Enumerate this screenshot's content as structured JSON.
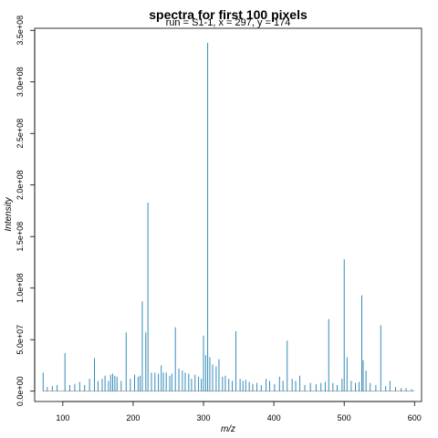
{
  "chart_data": {
    "type": "line",
    "title": "spectra for first 100 pixels",
    "subtitle": "run = S1-1, x = 297, y = 174",
    "xlabel": "m/z",
    "ylabel": "Intensity",
    "xlim": [
      60,
      610
    ],
    "ylim": [
      -10000000.0,
      352000000.0
    ],
    "x_ticks": [
      100,
      200,
      300,
      400,
      500,
      600
    ],
    "x_tick_labels": [
      "100",
      "200",
      "300",
      "400",
      "500",
      "600"
    ],
    "y_ticks": [
      0,
      50000000,
      100000000,
      150000000,
      200000000,
      250000000,
      300000000,
      350000000
    ],
    "y_tick_labels": [
      "0.0e+00",
      "5.0e+07",
      "1.0e+08",
      "1.5e+08",
      "2.0e+08",
      "2.5e+08",
      "3.0e+08",
      "3.5e+08"
    ],
    "grid": false,
    "line_color": "#1f7fb0",
    "baseline_color": "#888888",
    "series": [
      {
        "x": [
          72,
          78,
          85,
          92,
          103,
          110,
          117,
          124,
          131,
          138,
          145,
          150,
          156,
          160,
          165,
          168,
          171,
          174,
          177,
          183,
          190,
          196,
          202,
          207,
          210,
          213,
          218,
          221,
          226,
          231,
          236,
          240,
          243,
          247,
          252,
          255,
          260,
          265,
          270,
          274,
          279,
          283,
          288,
          293,
          297,
          300,
          303,
          306,
          309,
          313,
          318,
          322,
          327,
          331,
          336,
          341,
          346,
          352,
          356,
          360,
          365,
          370,
          376,
          382,
          389,
          394,
          401,
          408,
          413,
          419,
          426,
          431,
          437,
          444,
          452,
          460,
          467,
          473,
          478,
          484,
          490,
          497,
          500,
          504,
          510,
          516,
          521,
          525,
          527,
          531,
          537,
          545,
          552,
          559,
          565,
          573,
          581,
          588,
          596
        ],
        "y": [
          18000000,
          4000000,
          5000000,
          6000000,
          37000000,
          6000000,
          7000000,
          9000000,
          6000000,
          12000000,
          32000000,
          10000000,
          12000000,
          15000000,
          10000000,
          16000000,
          17000000,
          15000000,
          14000000,
          10000000,
          57000000,
          12000000,
          16000000,
          14000000,
          15000000,
          87000000,
          57000000,
          183000000,
          18000000,
          18000000,
          17000000,
          25000000,
          18000000,
          18000000,
          15000000,
          17000000,
          62000000,
          22000000,
          20000000,
          18000000,
          17000000,
          12000000,
          16000000,
          14000000,
          12000000,
          54000000,
          35000000,
          338000000,
          33000000,
          26000000,
          24000000,
          31000000,
          14000000,
          15000000,
          12000000,
          10000000,
          58000000,
          12000000,
          10000000,
          11000000,
          9000000,
          7000000,
          8000000,
          6000000,
          12000000,
          10000000,
          7000000,
          14000000,
          10000000,
          49000000,
          12000000,
          10000000,
          15000000,
          6000000,
          8000000,
          7000000,
          8000000,
          9000000,
          70000000,
          8000000,
          6000000,
          12000000,
          128000000,
          33000000,
          10000000,
          8000000,
          9000000,
          93000000,
          30000000,
          20000000,
          8000000,
          6000000,
          64000000,
          5000000,
          10000000,
          4000000,
          3000000,
          3000000,
          2000000
        ]
      }
    ]
  }
}
